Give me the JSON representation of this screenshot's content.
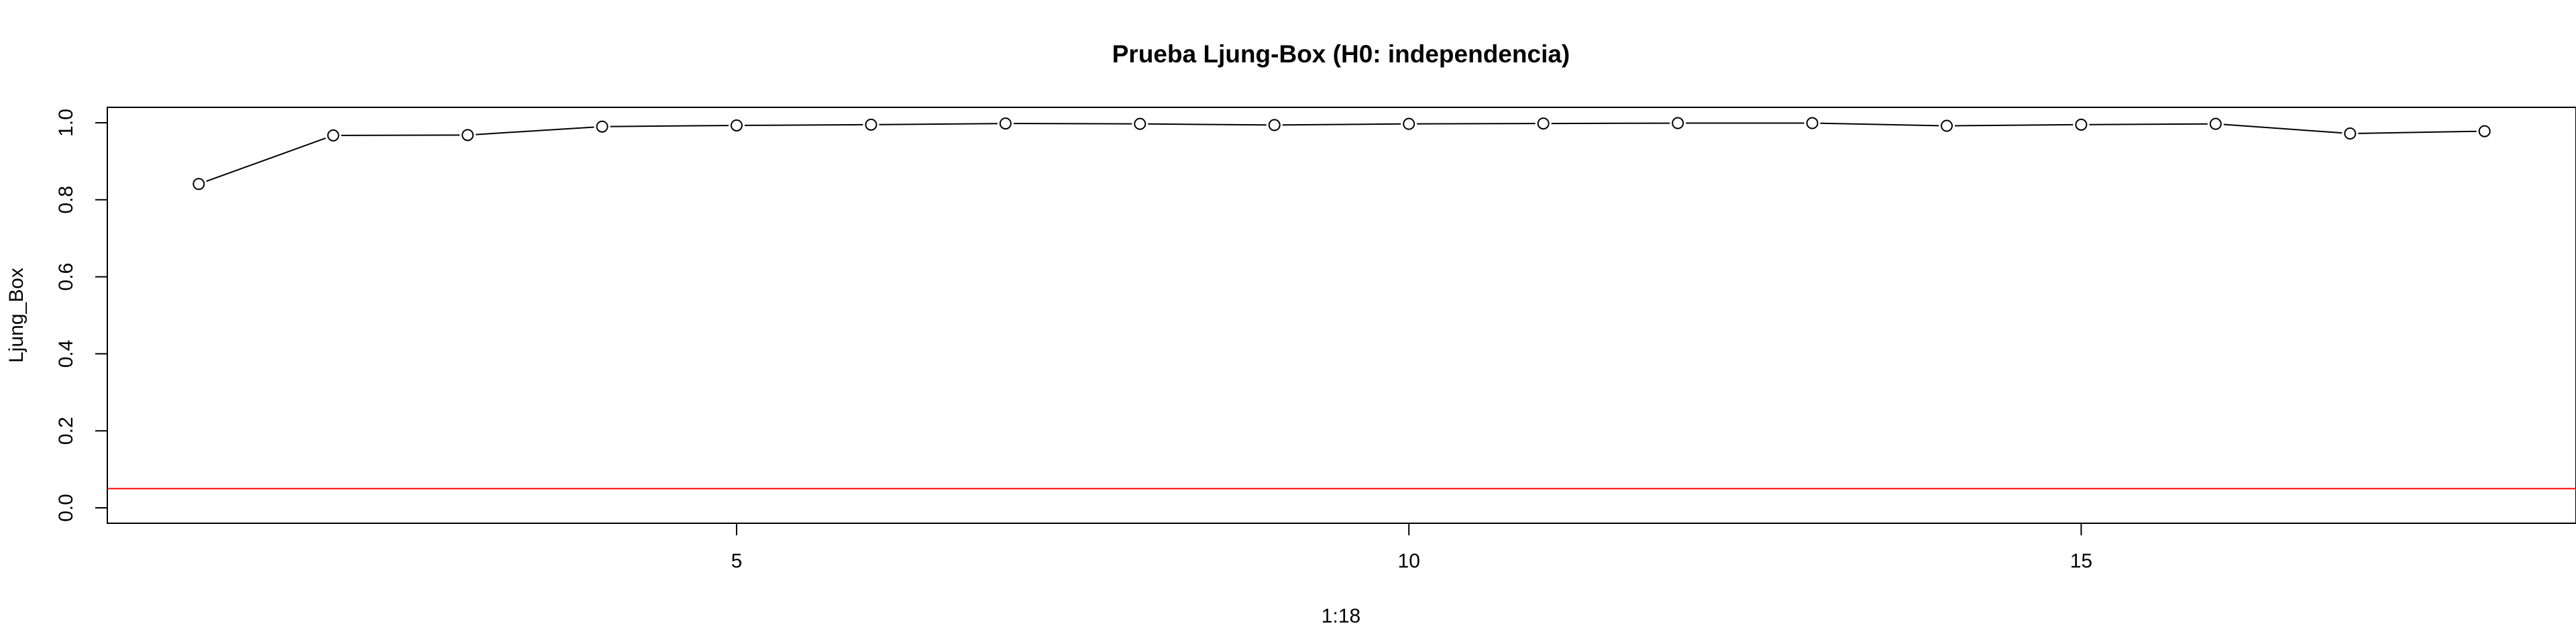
{
  "chart_data": {
    "type": "line",
    "title": "Prueba Ljung-Box (H0: independencia)",
    "xlabel": "1:18",
    "ylabel": "Ljung_Box",
    "x": [
      1,
      2,
      3,
      4,
      5,
      6,
      7,
      8,
      9,
      10,
      11,
      12,
      13,
      14,
      15,
      16,
      17,
      18
    ],
    "series": [
      {
        "values": [
          0.841,
          0.967,
          0.968,
          0.99,
          0.993,
          0.995,
          0.998,
          0.997,
          0.994,
          0.997,
          0.998,
          0.999,
          0.999,
          0.992,
          0.995,
          0.997,
          0.972,
          0.978
        ]
      }
    ],
    "xlim": [
      0.32,
      18.68
    ],
    "ylim": [
      -0.04,
      1.04
    ],
    "xticks": [
      5,
      10,
      15
    ],
    "yticks": [
      0.0,
      0.2,
      0.4,
      0.6,
      0.8,
      1.0
    ],
    "reference_line": {
      "y": 0.05,
      "color": "#ff0000"
    },
    "line_color": "#000000",
    "grid": false,
    "legend": "none"
  }
}
